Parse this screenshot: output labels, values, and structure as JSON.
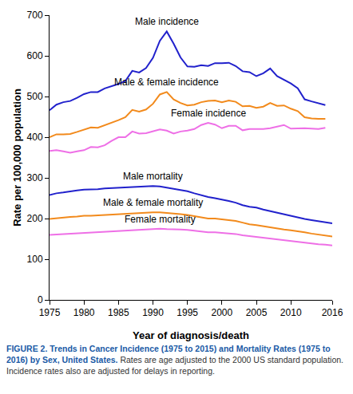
{
  "chart_data": {
    "type": "line",
    "title": "FIGURE 2. Trends in Cancer Incidence (1975 to 2015) and Mortality Rates (1975 to 2016) by Sex, United States.",
    "subtitle": "Rates are age adjusted to the 2000 US standard population. Incidence rates also are adjusted for delays in reporting.",
    "x_label": "Year of diagnosis/death",
    "y_label": "Rate per 100,000 population",
    "x": [
      1975,
      1976,
      1977,
      1978,
      1979,
      1980,
      1981,
      1982,
      1983,
      1984,
      1985,
      1986,
      1987,
      1988,
      1989,
      1990,
      1991,
      1992,
      1993,
      1994,
      1995,
      1996,
      1997,
      1998,
      1999,
      2000,
      2001,
      2002,
      2003,
      2004,
      2005,
      2006,
      2007,
      2008,
      2009,
      2010,
      2011,
      2012,
      2013,
      2014,
      2015,
      2016
    ],
    "xlim": [
      1975,
      2016
    ],
    "xticks": [
      1975,
      1980,
      1985,
      1990,
      1995,
      2000,
      2005,
      2010,
      2016
    ],
    "ylim": [
      0,
      700
    ],
    "yticks": [
      0,
      100,
      200,
      300,
      400,
      500,
      600,
      700
    ],
    "grid": false,
    "series": [
      {
        "name": "Male incidence",
        "color": "#2121cc",
        "values": [
          466,
          480,
          486,
          489,
          497,
          506,
          511,
          511,
          520,
          525,
          531,
          538,
          563,
          559,
          570,
          595,
          637,
          660,
          630,
          596,
          574,
          573,
          577,
          575,
          582,
          582,
          583,
          575,
          562,
          560,
          550,
          557,
          569,
          550,
          541,
          532,
          520,
          493,
          488,
          483,
          479,
          null
        ]
      },
      {
        "name": "Male & female incidence",
        "color": "#f28a1c",
        "values": [
          400,
          407,
          407,
          408,
          413,
          418,
          424,
          423,
          429,
          436,
          442,
          449,
          467,
          463,
          468,
          482,
          505,
          511,
          493,
          484,
          478,
          480,
          486,
          489,
          490,
          486,
          490,
          487,
          476,
          477,
          472,
          475,
          484,
          477,
          478,
          470,
          464,
          449,
          446,
          445,
          445,
          null
        ]
      },
      {
        "name": "Female incidence",
        "color": "#ee6fe6",
        "values": [
          366,
          368,
          365,
          362,
          365,
          368,
          376,
          375,
          380,
          391,
          400,
          400,
          414,
          409,
          410,
          414,
          419,
          416,
          409,
          414,
          416,
          420,
          430,
          435,
          431,
          422,
          428,
          428,
          417,
          420,
          420,
          420,
          422,
          426,
          430,
          421,
          422,
          422,
          421,
          420,
          423,
          null
        ]
      },
      {
        "name": "Male mortality",
        "color": "#2121cc",
        "values": [
          258,
          262,
          264,
          267,
          269,
          271,
          271,
          272,
          274,
          275,
          276,
          277,
          278,
          278,
          279,
          280,
          279,
          276,
          274,
          270,
          267,
          262,
          257,
          253,
          250,
          247,
          243,
          239,
          233,
          229,
          227,
          222,
          218,
          214,
          210,
          207,
          203,
          199,
          196,
          193,
          190,
          188
        ]
      },
      {
        "name": "Male & female mortality",
        "color": "#f28a1c",
        "values": [
          199,
          201,
          203,
          204,
          205,
          207,
          207,
          208,
          209,
          210,
          211,
          212,
          212,
          213,
          214,
          215,
          215,
          214,
          213,
          211,
          209,
          206,
          203,
          200,
          200,
          198,
          196,
          194,
          190,
          186,
          184,
          181,
          178,
          176,
          173,
          171,
          169,
          166,
          163,
          161,
          158,
          156
        ]
      },
      {
        "name": "Female mortality",
        "color": "#ee6fe6",
        "values": [
          160,
          161,
          162,
          162,
          163,
          164,
          165,
          166,
          167,
          168,
          169,
          170,
          171,
          172,
          173,
          174,
          175,
          174,
          174,
          173,
          172,
          170,
          168,
          166,
          166,
          165,
          163,
          162,
          159,
          157,
          155,
          153,
          151,
          148,
          146,
          145,
          143,
          141,
          139,
          137,
          136,
          134
        ]
      }
    ]
  }
}
